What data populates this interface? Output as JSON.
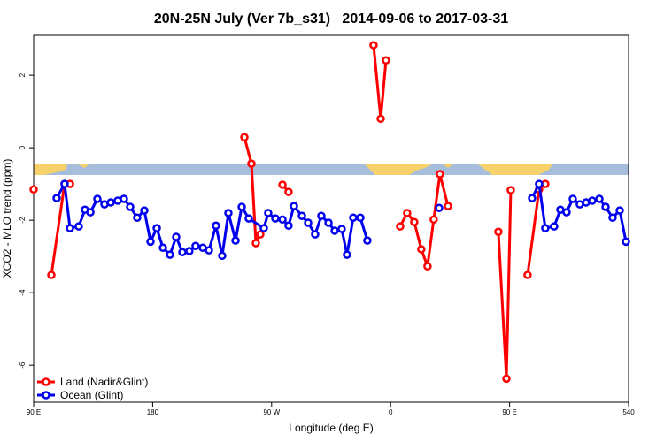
{
  "chart_data": {
    "type": "line",
    "title": "20N-25N July (Ver 7b_s31)   2014-09-06 to 2017-03-31",
    "x_label": "Longitude (deg E)",
    "y_label": "XCO2 - MLO trend (ppm)",
    "xlim": [
      90,
      540
    ],
    "ylim": [
      -7.02,
      3.1
    ],
    "xticks": [
      {
        "value": 90,
        "label": "90 E"
      },
      180,
      {
        "value": 270,
        "label": "90 W"
      },
      {
        "value": 360,
        "label": "0"
      },
      {
        "value": 450,
        "label": "90 E"
      },
      540
    ],
    "yticks": [
      -6,
      -4,
      -2,
      0,
      2
    ],
    "legend": "bottom-left",
    "series": [
      {
        "name": "Land (Nadir&Glint)",
        "color": "#ff0000",
        "x": [
          90.0,
          null,
          103.4,
          113.4,
          117.5,
          null,
          249.4,
          254.7,
          258.1,
          261.4,
          null,
          278.2,
          282.8,
          null,
          347.1,
          352.5,
          356.5,
          null,
          367.2,
          372.5,
          377.9,
          383.2,
          387.9,
          392.6,
          397.3,
          403.4,
          null,
          441.5,
          447.6,
          450.9,
          null,
          463.6,
          472.3,
          477.0
        ],
        "values": [
          -1.15,
          null,
          -3.51,
          -1.0,
          -1.0,
          null,
          0.29,
          -0.44,
          -2.63,
          -2.39,
          null,
          -1.02,
          -1.22,
          null,
          2.83,
          0.8,
          2.41,
          null,
          -2.17,
          -1.8,
          -2.05,
          -2.8,
          -3.27,
          -1.98,
          -0.73,
          -1.61,
          null,
          -2.32,
          -6.37,
          -1.17,
          null,
          -3.51,
          -1.15,
          -1.0
        ]
      },
      {
        "name": "Ocean (Glint)",
        "color": "#0000ee",
        "x": [
          107.4,
          113.4,
          117.5,
          124.1,
          128.8,
          132.9,
          138.2,
          143.6,
          148.3,
          153.6,
          158.3,
          163.0,
          168.3,
          173.7,
          178.4,
          183.1,
          187.8,
          193.1,
          197.8,
          202.5,
          207.8,
          212.5,
          217.9,
          222.6,
          227.9,
          232.6,
          237.3,
          242.7,
          247.4,
          252.7,
          264.1,
          267.4,
          272.8,
          278.2,
          282.8,
          286.9,
          292.9,
          297.6,
          302.9,
          307.6,
          313.0,
          317.7,
          323.0,
          327.0,
          331.7,
          337.1,
          342.4,
          null,
          396.7,
          null,
          467.0,
          472.3,
          477.0,
          483.7,
          488.4,
          493.1,
          497.8,
          503.1,
          507.8,
          512.5,
          517.9,
          522.6,
          527.9,
          533.3,
          538.0
        ],
        "values": [
          -1.39,
          -1.0,
          -2.22,
          -2.17,
          -1.71,
          -1.78,
          -1.41,
          -1.56,
          -1.51,
          -1.46,
          -1.41,
          -1.63,
          -1.93,
          -1.73,
          -2.59,
          -2.22,
          -2.76,
          -2.95,
          -2.46,
          -2.88,
          -2.85,
          -2.71,
          -2.76,
          -2.83,
          -2.15,
          -2.98,
          -1.8,
          -2.56,
          -1.63,
          -1.95,
          -2.22,
          -1.8,
          -1.95,
          -1.98,
          -2.15,
          -1.61,
          -1.88,
          -2.07,
          -2.39,
          -1.88,
          -2.07,
          -2.29,
          -2.24,
          -2.95,
          -1.93,
          -1.93,
          -2.56,
          null,
          -1.66,
          null,
          -1.39,
          -1.0,
          -2.22,
          -2.17,
          -1.71,
          -1.78,
          -1.41,
          -1.56,
          -1.51,
          -1.46,
          -1.41,
          -1.63,
          -1.93,
          -1.73,
          -2.59
        ]
      }
    ]
  }
}
